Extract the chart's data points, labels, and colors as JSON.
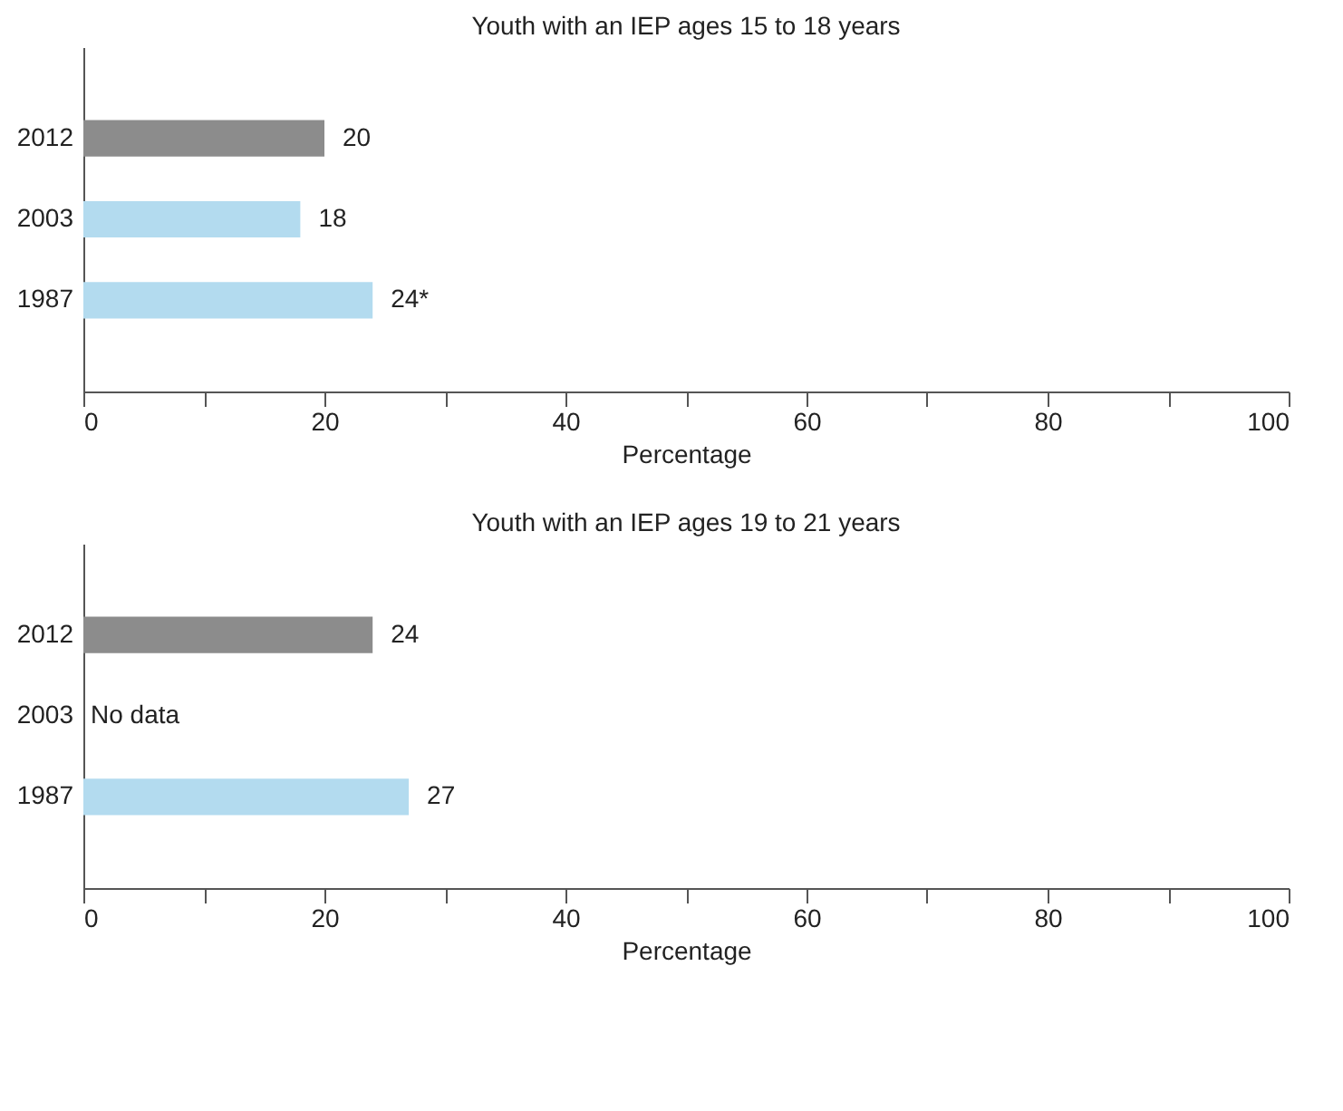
{
  "chart_data": [
    {
      "type": "bar",
      "orientation": "horizontal",
      "title": "Youth with an IEP ages 15 to 18 years",
      "xlabel": "Percentage",
      "categories": [
        "2012",
        "2003",
        "1987"
      ],
      "values": [
        20,
        18,
        24
      ],
      "value_labels": [
        "20",
        "18",
        "24*"
      ],
      "colors": [
        "#8c8c8c",
        "#b3dbef",
        "#b3dbef"
      ],
      "xlim": [
        0,
        100
      ],
      "xticks": [
        0,
        {
          "value": 10,
          "label": null
        },
        20,
        {
          "value": 30,
          "label": null
        },
        40,
        {
          "value": 50,
          "label": null
        },
        60,
        {
          "value": 70,
          "label": null
        },
        80,
        {
          "value": 90,
          "label": null
        },
        100
      ],
      "grid": false
    },
    {
      "type": "bar",
      "orientation": "horizontal",
      "title": "Youth with an IEP ages 19 to 21 years",
      "xlabel": "Percentage",
      "categories": [
        "2012",
        "2003",
        "1987"
      ],
      "values": [
        24,
        null,
        27
      ],
      "value_labels": [
        "24",
        "No data",
        "27"
      ],
      "colors": [
        "#8c8c8c",
        "#b3dbef",
        "#b3dbef"
      ],
      "xlim": [
        0,
        100
      ],
      "xticks": [
        0,
        {
          "value": 10,
          "label": null
        },
        20,
        {
          "value": 30,
          "label": null
        },
        40,
        {
          "value": 50,
          "label": null
        },
        60,
        {
          "value": 70,
          "label": null
        },
        80,
        {
          "value": 90,
          "label": null
        },
        100
      ],
      "grid": false
    }
  ]
}
